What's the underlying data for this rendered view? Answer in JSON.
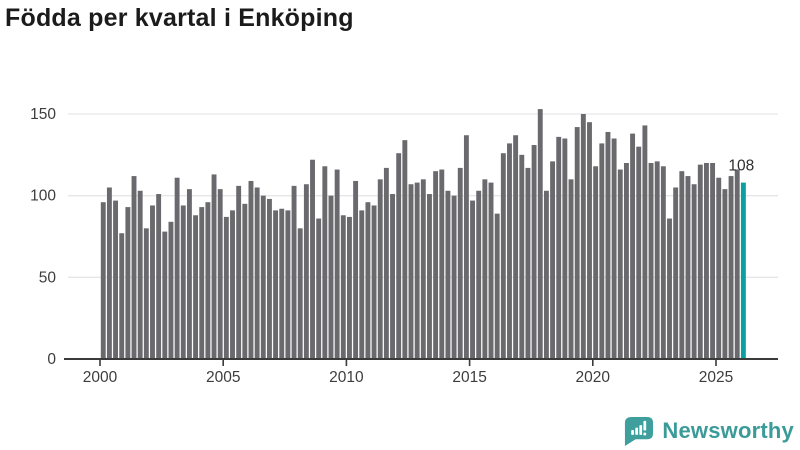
{
  "title": "Födda per kvartal i Enköping",
  "branding": {
    "wordmark": "Newsworthy",
    "logo_icon": "speech-bubble-with-bar-chart-and-exclamation",
    "brand_color": "#3a9b99"
  },
  "chart_data": {
    "type": "bar",
    "title": "Födda per kvartal i Enköping",
    "x_tick_labels": [
      "2000",
      "2005",
      "2010",
      "2015",
      "2020",
      "2025"
    ],
    "y_tick_labels": [
      "0",
      "50",
      "100",
      "150"
    ],
    "y_tick_values": [
      0,
      50,
      100,
      150
    ],
    "ylim": [
      0,
      150
    ],
    "grid": true,
    "legend": false,
    "bars_per_year": 4,
    "x_range": {
      "first_bar": "2000 Q1",
      "last_bar": "2026 Q1"
    },
    "bar_color": "#6a6a6e",
    "highlight_color": "#0aa0a2",
    "axis_color": "#3b3b3b",
    "grid_color": "#e6e6e6",
    "values": [
      96,
      105,
      97,
      77,
      93,
      112,
      103,
      80,
      94,
      101,
      78,
      84,
      111,
      94,
      104,
      88,
      93,
      96,
      113,
      104,
      87,
      91,
      106,
      95,
      109,
      105,
      100,
      98,
      91,
      92,
      91,
      106,
      80,
      107,
      122,
      86,
      118,
      100,
      116,
      88,
      87,
      109,
      91,
      96,
      94,
      110,
      117,
      101,
      126,
      134,
      107,
      108,
      110,
      101,
      115,
      116,
      103,
      100,
      117,
      137,
      97,
      103,
      110,
      108,
      89,
      126,
      132,
      137,
      125,
      117,
      131,
      153,
      103,
      121,
      136,
      135,
      110,
      142,
      150,
      145,
      118,
      132,
      139,
      135,
      116,
      120,
      138,
      130,
      143,
      120,
      121,
      118,
      86,
      105,
      115,
      112,
      107,
      119,
      120,
      120,
      111,
      104,
      112,
      116,
      108
    ],
    "highlight": {
      "index": 104,
      "value": 108,
      "label": "108"
    }
  }
}
